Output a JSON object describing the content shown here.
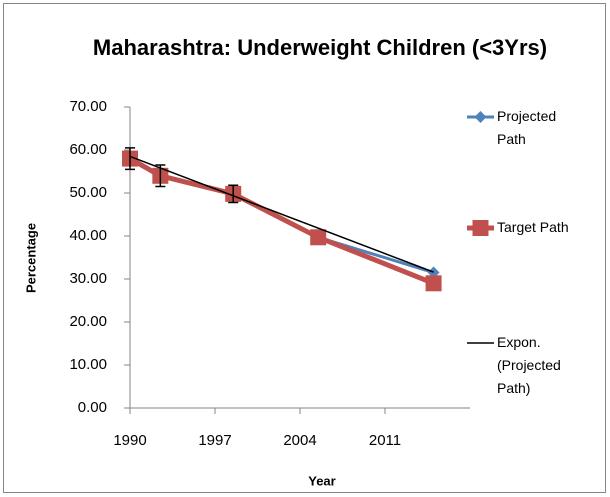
{
  "chart_data": {
    "type": "line",
    "title": "Maharashtra: Underweight Children (<3Yrs)",
    "x_label": "Year",
    "y_label": "Percentage",
    "x": [
      1990,
      1992.5,
      1998.5,
      2005.5,
      2015
    ],
    "series": [
      {
        "name": "Projected Path",
        "color": "#4f81bd",
        "marker": "diamond",
        "values": [
          58.0,
          54.0,
          49.8,
          39.7,
          31.5
        ]
      },
      {
        "name": "Target Path",
        "color": "#c0504d",
        "marker": "square",
        "values": [
          58.0,
          54.0,
          49.8,
          39.7,
          29.0
        ],
        "errors": [
          2.5,
          2.5,
          2,
          null,
          null
        ]
      },
      {
        "name": "Expon. (Projected Path)",
        "color": "#000000",
        "marker": "none",
        "x": [
          1990,
          2015
        ],
        "values": [
          58.5,
          31.6
        ]
      }
    ],
    "xlim": [
      1990,
      2018
    ],
    "xticks": [
      1990,
      1997,
      2004,
      2011
    ],
    "ylim": [
      0,
      70
    ],
    "yticks": [
      {
        "value": 0,
        "label": "0.00"
      },
      {
        "value": 10,
        "label": "10.00"
      },
      {
        "value": 20,
        "label": "20.00"
      },
      {
        "value": 30,
        "label": "30.00"
      },
      {
        "value": 40,
        "label": "40.00"
      },
      {
        "value": 50,
        "label": "50.00"
      },
      {
        "value": 60,
        "label": "60.00"
      },
      {
        "value": 70,
        "label": "70.00"
      }
    ],
    "grid": false,
    "legend": "right"
  }
}
